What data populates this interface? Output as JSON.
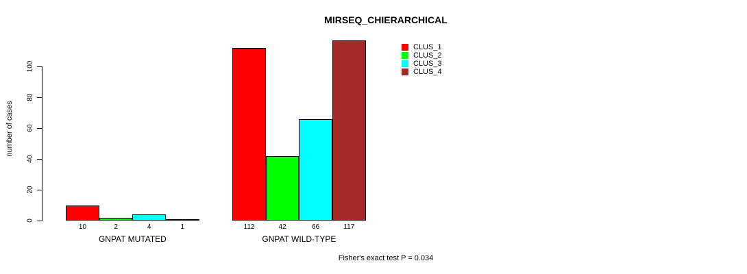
{
  "title": "MIRSEQ_CHIERARCHICAL",
  "caption": "Fisher's exact test P = 0.034",
  "chart_data": {
    "type": "bar",
    "title": "MIRSEQ_CHIERARCHICAL",
    "xlabel": "",
    "ylabel": "number of cases",
    "ylim": [
      0,
      117
    ],
    "yticks": [
      0,
      20,
      40,
      60,
      80,
      100
    ],
    "grid": false,
    "legend_position": "top-right-inside",
    "bar_value_labels_shown": true,
    "categories": [
      "GNPAT MUTATED",
      "GNPAT WILD-TYPE"
    ],
    "series": [
      {
        "name": "CLUS_1",
        "color": "#ff0000",
        "values": [
          10,
          112
        ]
      },
      {
        "name": "CLUS_2",
        "color": "#00ff00",
        "values": [
          2,
          42
        ]
      },
      {
        "name": "CLUS_3",
        "color": "#00ffff",
        "values": [
          4,
          66
        ]
      },
      {
        "name": "CLUS_4",
        "color": "#a52a2a",
        "values": [
          1,
          117
        ]
      }
    ],
    "annotation": "Fisher's exact test P = 0.034"
  }
}
